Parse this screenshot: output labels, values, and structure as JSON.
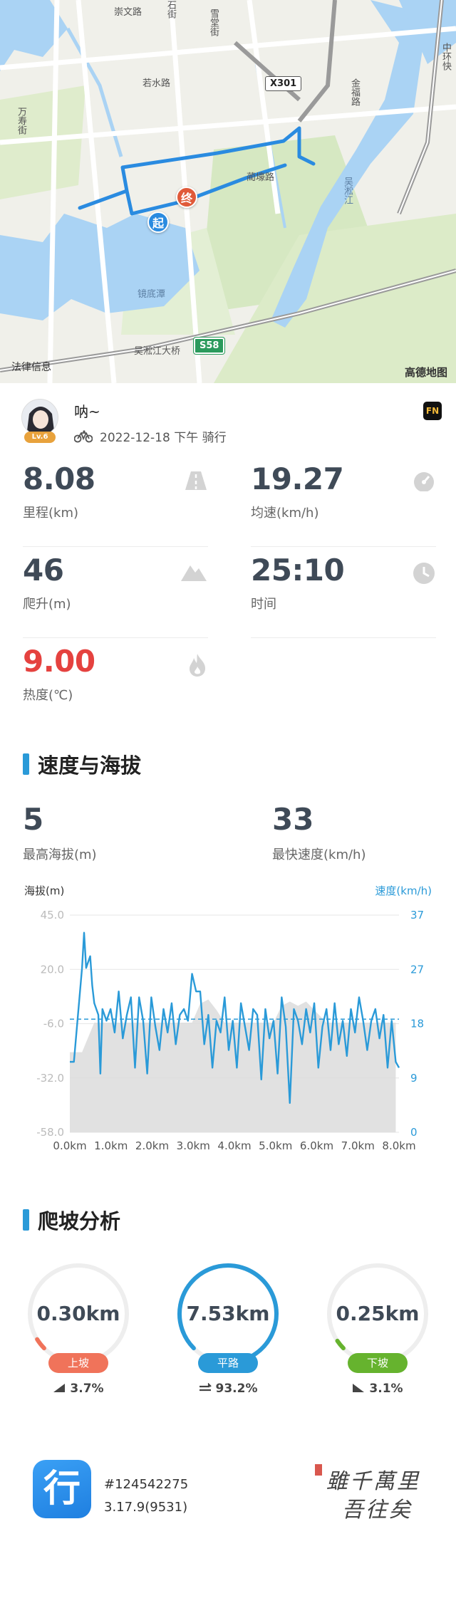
{
  "map": {
    "roads": [
      "崇文路",
      "若水路",
      "石街",
      "雪堂街",
      "万寿街",
      "蔺壕路",
      "金福路",
      "中环快",
      "吴淞江大桥"
    ],
    "water": [
      "镜底潭",
      "吴淞江"
    ],
    "route_sign_x": "X301",
    "route_sign_s": "S58",
    "start_label": "起",
    "end_label": "终",
    "legal": "法律信息",
    "logo": "高德地图"
  },
  "user": {
    "name": "呐~",
    "level": "Lv.6",
    "meta": "2022-12-18 下午 骑行",
    "app_badge": "FN"
  },
  "stats": [
    {
      "value": "8.08",
      "label": "里程(km)",
      "icon": "road-icon"
    },
    {
      "value": "19.27",
      "label": "均速(km/h)",
      "icon": "speedometer-icon"
    },
    {
      "value": "46",
      "label": "爬升(m)",
      "icon": "mountain-icon"
    },
    {
      "value": "25:10",
      "label": "时间",
      "icon": "clock-icon"
    },
    {
      "value": "9.00",
      "label": "热度(℃)",
      "icon": "flame-icon"
    }
  ],
  "speed_section": {
    "title": "速度与海拔",
    "max_alt_value": "5",
    "max_alt_label": "最高海拔(m)",
    "max_speed_value": "33",
    "max_speed_label": "最快速度(km/h)"
  },
  "chart_data": {
    "type": "line",
    "title": "速度与海拔",
    "ylabel": "海拔(m)",
    "y2label": "速度(km/h)",
    "x_ticks": [
      "0.0km",
      "1.0km",
      "2.0km",
      "3.0km",
      "4.0km",
      "5.0km",
      "6.0km",
      "7.0km",
      "8.0km"
    ],
    "y_ticks": [
      "45.0",
      "20.0",
      "-6.0",
      "-32.0",
      "-58.0"
    ],
    "y2_ticks": [
      "37",
      "27",
      "18",
      "9",
      "0"
    ],
    "xlim": [
      0,
      8.08
    ],
    "ylim": [
      -58,
      45
    ],
    "y2lim": [
      0,
      37
    ],
    "avg_speed_line": 19.27,
    "series": [
      {
        "name": "海拔(m)",
        "x": [
          0,
          0.3,
          0.6,
          1.0,
          1.5,
          2.0,
          2.5,
          3.0,
          3.2,
          3.4,
          3.6,
          3.8,
          4.0,
          4.5,
          5.0,
          5.2,
          5.4,
          5.6,
          5.8,
          6.0,
          6.3,
          6.6,
          7.0,
          7.5,
          8.0
        ],
        "values": [
          -20,
          -20,
          -6,
          -6,
          -6,
          -6,
          -6,
          -6,
          3,
          5,
          0,
          -6,
          -6,
          -6,
          -6,
          2,
          4,
          2,
          4,
          0,
          -6,
          -6,
          -6,
          -6,
          -6
        ]
      },
      {
        "name": "速度(km/h)",
        "x": [
          0.0,
          0.1,
          0.2,
          0.3,
          0.35,
          0.4,
          0.5,
          0.55,
          0.6,
          0.7,
          0.75,
          0.8,
          0.9,
          1.0,
          1.1,
          1.2,
          1.3,
          1.4,
          1.5,
          1.6,
          1.7,
          1.8,
          1.9,
          2.0,
          2.1,
          2.2,
          2.3,
          2.4,
          2.5,
          2.6,
          2.7,
          2.8,
          2.9,
          3.0,
          3.1,
          3.2,
          3.3,
          3.4,
          3.5,
          3.6,
          3.7,
          3.8,
          3.9,
          4.0,
          4.1,
          4.2,
          4.3,
          4.4,
          4.5,
          4.6,
          4.7,
          4.8,
          4.9,
          5.0,
          5.1,
          5.2,
          5.3,
          5.4,
          5.5,
          5.6,
          5.7,
          5.8,
          5.9,
          6.0,
          6.1,
          6.2,
          6.3,
          6.4,
          6.5,
          6.6,
          6.7,
          6.8,
          6.9,
          7.0,
          7.1,
          7.2,
          7.3,
          7.4,
          7.5,
          7.6,
          7.7,
          7.8,
          7.9,
          8.0,
          8.08
        ],
        "values": [
          12,
          12,
          20,
          28,
          34,
          28,
          30,
          25,
          22,
          20,
          10,
          21,
          19,
          21,
          17,
          24,
          16,
          20,
          23,
          11,
          23,
          19,
          10,
          23,
          18,
          14,
          21,
          17,
          22,
          15,
          20,
          21,
          19,
          27,
          24,
          24,
          15,
          20,
          11,
          19,
          17,
          23,
          14,
          19,
          11,
          22,
          18,
          14,
          21,
          20,
          9,
          21,
          16,
          19,
          10,
          23,
          18,
          5,
          21,
          19,
          15,
          21,
          17,
          22,
          11,
          18,
          21,
          14,
          22,
          15,
          19,
          13,
          21,
          17,
          23,
          19,
          14,
          19,
          21,
          16,
          20,
          11,
          19,
          12,
          11
        ]
      }
    ]
  },
  "climb_section": {
    "title": "爬坡分析",
    "items": [
      {
        "value": "0.30km",
        "tag": "上坡",
        "pct": "3.7%",
        "color": "#f0735a",
        "fraction": 0.037
      },
      {
        "value": "7.53km",
        "tag": "平路",
        "pct": "93.2%",
        "color": "#2a9ad8",
        "fraction": 0.932
      },
      {
        "value": "0.25km",
        "tag": "下坡",
        "pct": "3.1%",
        "color": "#66b32e",
        "fraction": 0.031
      }
    ]
  },
  "footer": {
    "app_icon_char": "行",
    "record_id": "#124542275",
    "version": "3.17.9(9531)",
    "calligraphy": "雖千萬里 吾往矣"
  }
}
